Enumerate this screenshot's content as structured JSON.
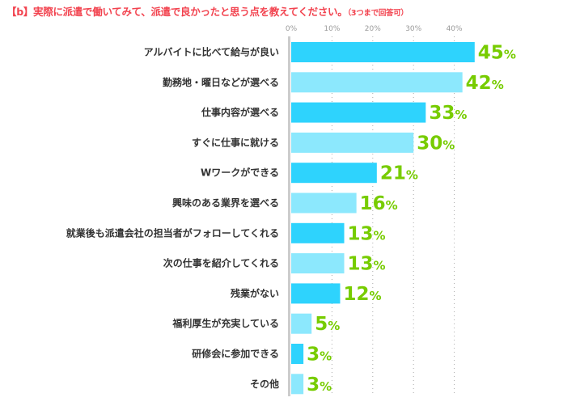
{
  "chart_data": {
    "type": "bar",
    "orientation": "horizontal",
    "title": "【b】実際に派遣で働いてみて、派遣で良かったと思う点を教えてください。",
    "subtitle": "（3つまで回答可）",
    "categories": [
      "アルバイトに比べて給与が良い",
      "勤務地・曜日などが選べる",
      "仕事内容が選べる",
      "すぐに仕事に就ける",
      "Wワークができる",
      "興味のある業界を選べる",
      "就業後も派遣会社の担当者がフォローしてくれる",
      "次の仕事を紹介してくれる",
      "残業がない",
      "福利厚生が充実している",
      "研修会に参加できる",
      "その他"
    ],
    "values": [
      45,
      42,
      33,
      30,
      21,
      16,
      13,
      13,
      12,
      5,
      3,
      3
    ],
    "value_unit": "%",
    "xticks": [
      "0%",
      "10%",
      "20%",
      "30%",
      "40%"
    ],
    "xlim": [
      0,
      45
    ],
    "grid": "dotted vertical",
    "colors": {
      "bar_odd": "#2ed3fd",
      "bar_even": "#8ce8fd",
      "value_label": "#77cc00",
      "title": "#f2434f"
    }
  }
}
